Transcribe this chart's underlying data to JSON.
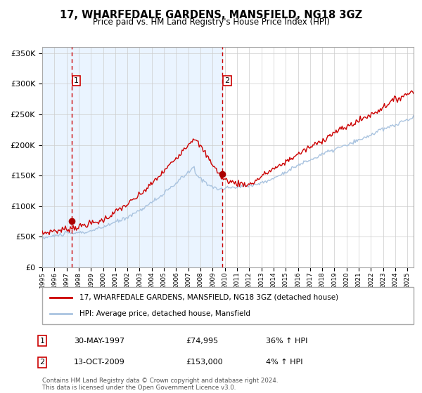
{
  "title": "17, WHARFEDALE GARDENS, MANSFIELD, NG18 3GZ",
  "subtitle": "Price paid vs. HM Land Registry's House Price Index (HPI)",
  "legend_line1": "17, WHARFEDALE GARDENS, MANSFIELD, NG18 3GZ (detached house)",
  "legend_line2": "HPI: Average price, detached house, Mansfield",
  "sale1_label": "1",
  "sale1_date": "30-MAY-1997",
  "sale1_price": "£74,995",
  "sale1_hpi": "36% ↑ HPI",
  "sale1_year": 1997.41,
  "sale1_value": 74995,
  "sale2_label": "2",
  "sale2_date": "13-OCT-2009",
  "sale2_price": "£153,000",
  "sale2_hpi": "4% ↑ HPI",
  "sale2_year": 2009.78,
  "sale2_value": 153000,
  "hpi_line_color": "#aac4e0",
  "price_line_color": "#cc0000",
  "sale_dot_color": "#aa0000",
  "dashed_line_color": "#cc0000",
  "bg_color": "#ddeeff",
  "plot_bg": "#ffffff",
  "grid_color": "#cccccc",
  "xmin": 1995,
  "xmax": 2025.5,
  "ymin": 0,
  "ymax": 360000,
  "footer": "Contains HM Land Registry data © Crown copyright and database right 2024.\nThis data is licensed under the Open Government Licence v3.0."
}
